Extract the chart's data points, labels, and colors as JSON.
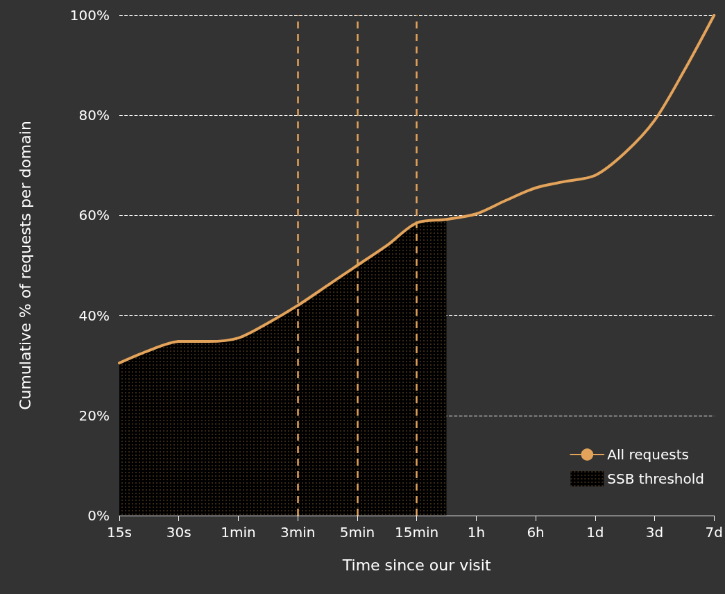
{
  "chart_data": {
    "type": "line",
    "xlabel": "Time since our visit",
    "ylabel": "Cumulative % of requests per domain",
    "categories": [
      "15s",
      null,
      "30s",
      null,
      "1min",
      null,
      "3min",
      null,
      "5min",
      null,
      "15min",
      null,
      "1h",
      null,
      "6h",
      null,
      "1d",
      null,
      "3d",
      null,
      "7d"
    ],
    "ylim": [
      0,
      100
    ],
    "yticks": [
      {
        "value": 0,
        "label": "0%"
      },
      {
        "value": 20,
        "label": "20%"
      },
      {
        "value": 40,
        "label": "40%"
      },
      {
        "value": 60,
        "label": "60%"
      },
      {
        "value": 80,
        "label": "80%"
      },
      {
        "value": 100,
        "label": "100%"
      }
    ],
    "grid": "y",
    "legend": "bottom right",
    "marker": "none",
    "line_style": "solid",
    "series": [
      {
        "name": "All requests",
        "color": "#e3a35a",
        "values": [
          30.5,
          33,
          34.8,
          34.8,
          35.5,
          38.5,
          42,
          46,
          50,
          54,
          58.5,
          59.2,
          60.3,
          63,
          65.5,
          66.8,
          68,
          72.5,
          79,
          89,
          100
        ]
      },
      {
        "name": "SSB threshold",
        "type": "area",
        "color": "#e3a35a",
        "values": [
          30.5,
          33,
          34.8,
          34.8,
          35.5,
          38.5,
          42,
          46,
          50,
          54,
          58.5,
          59.2,
          null,
          null,
          null,
          null,
          null,
          null,
          null,
          null,
          null
        ]
      }
    ],
    "ref_lines": [
      {
        "axis": "x",
        "value": "3min",
        "color": "#e3a35a",
        "line_style": "dashed"
      },
      {
        "axis": "x",
        "value": "5min",
        "color": "#e3a35a",
        "line_style": "dashed"
      },
      {
        "axis": "x",
        "value": "15min",
        "color": "#e3a35a",
        "line_style": "dashed"
      }
    ]
  }
}
